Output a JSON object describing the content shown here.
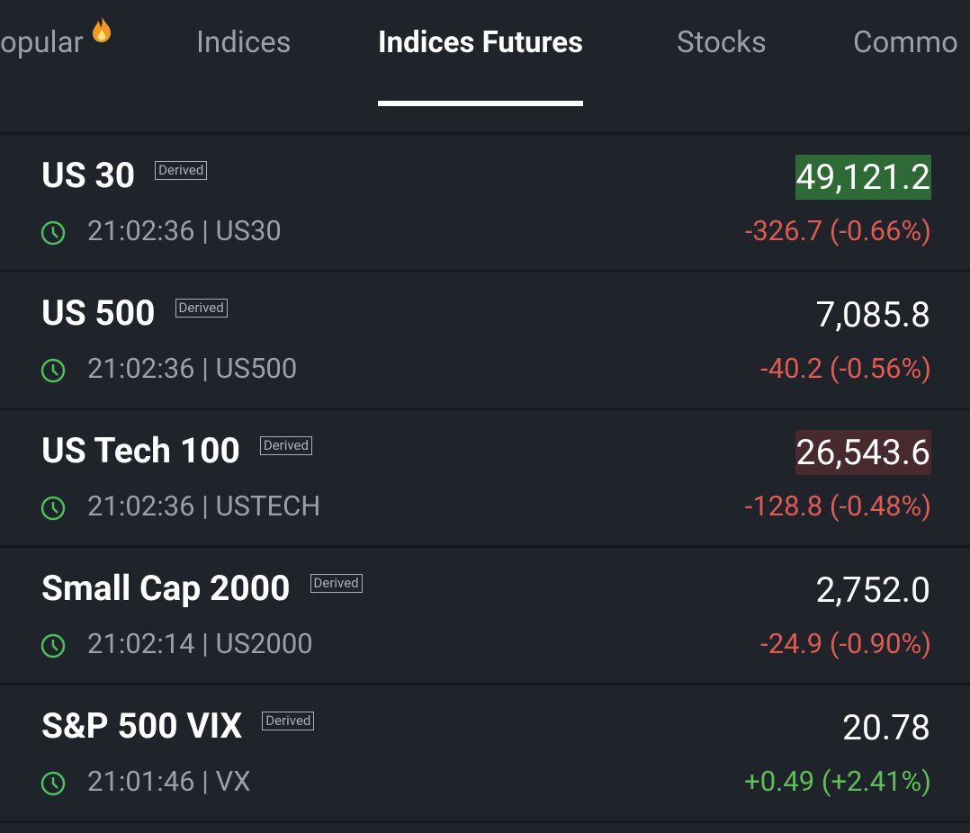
{
  "tabs": {
    "items": [
      "opular",
      "Indices",
      "Indices Futures",
      "Stocks",
      "Commo"
    ],
    "active": 2
  },
  "rows": [
    {
      "name": "US 30",
      "badge": "Derived",
      "meta": "21:02:36 | US30",
      "price": "49,121.2",
      "change": "-326.7 (-0.66%)",
      "trend": "down",
      "highlight": "up"
    },
    {
      "name": "US 500",
      "badge": "Derived",
      "meta": "21:02:36 | US500",
      "price": "7,085.8",
      "change": "-40.2 (-0.56%)",
      "trend": "down",
      "highlight": null
    },
    {
      "name": "US Tech 100",
      "badge": "Derived",
      "meta": "21:02:36 | USTECH",
      "price": "26,543.6",
      "change": "-128.8 (-0.48%)",
      "trend": "down",
      "highlight": "down"
    },
    {
      "name": "Small Cap 2000",
      "badge": "Derived",
      "meta": "21:02:14 | US2000",
      "price": "2,752.0",
      "change": "-24.9 (-0.90%)",
      "trend": "down",
      "highlight": null
    },
    {
      "name": "S&P 500 VIX",
      "badge": "Derived",
      "meta": "21:01:46 | VX",
      "price": "20.78",
      "change": "+0.49 (+2.41%)",
      "trend": "up",
      "highlight": null
    }
  ]
}
